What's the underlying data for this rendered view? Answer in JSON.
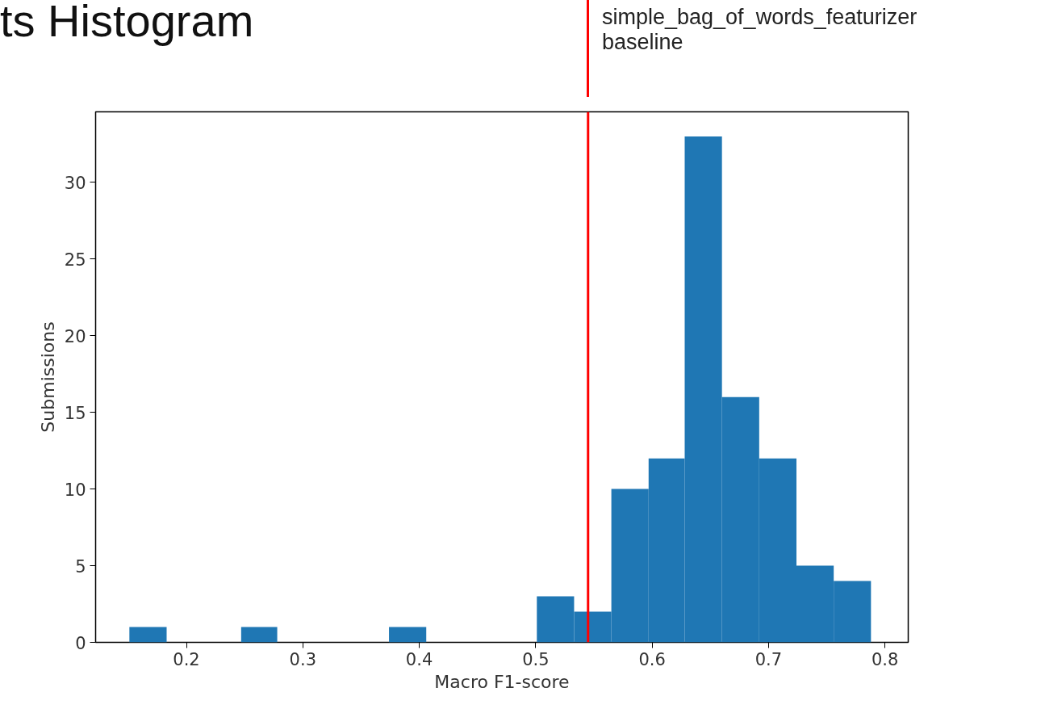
{
  "chart_data": {
    "type": "histogram",
    "title": "ts Histogram",
    "xlabel": "Macro F1-score",
    "ylabel": "Submissions",
    "bins": [
      0.151,
      0.183,
      0.247,
      0.278,
      0.374,
      0.406,
      0.501,
      0.533,
      0.565,
      0.597,
      0.628,
      0.66,
      0.692,
      0.724,
      0.756,
      0.788
    ],
    "values": [
      1,
      0,
      1,
      0,
      1,
      0,
      3,
      2,
      10,
      12,
      33,
      16,
      12,
      5,
      4
    ],
    "color": "#1f77b4",
    "xlim": [
      0.122,
      0.82
    ],
    "xticks": [
      0.2,
      0.3,
      0.4,
      0.5,
      0.6,
      0.7,
      0.8
    ],
    "ylim": [
      0,
      34.6
    ],
    "yticks": [
      0,
      5,
      10,
      15,
      20,
      25,
      30
    ],
    "grid": false,
    "ref_lines": [
      {
        "axis": "x",
        "value": 0.545,
        "label": "simple_bag_of_words_featurizer\nbaseline",
        "color": "#ff0000"
      }
    ]
  }
}
